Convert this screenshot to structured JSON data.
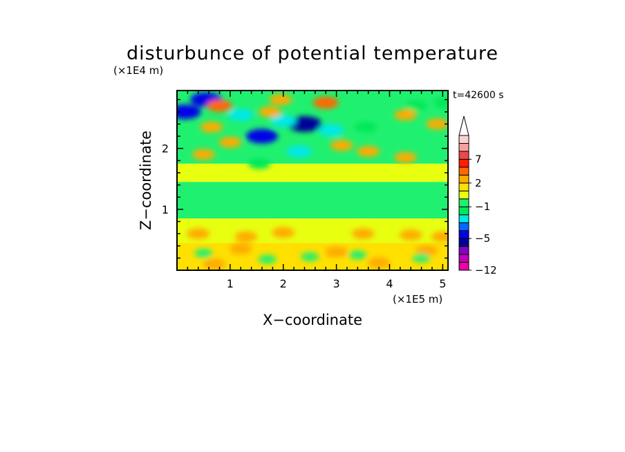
{
  "chart_data": {
    "type": "heatmap",
    "title": "disturbunce of potential temperature",
    "time_label": "t=42600 s",
    "xlabel": "X−coordinate",
    "ylabel": "Z−coordinate",
    "x_unit": "(×1E5 m)",
    "y_unit": "(×1E4 m)",
    "xlim": [
      0,
      5.1
    ],
    "ylim": [
      0,
      2.95
    ],
    "x_ticks": [
      1,
      2,
      3,
      4,
      5
    ],
    "y_ticks": [
      1,
      2
    ],
    "colorbar": {
      "levels": [
        -12,
        -10,
        -8,
        -6,
        -5,
        -4,
        -3,
        -2,
        -1,
        0,
        1,
        2,
        3,
        5,
        7,
        9,
        11,
        13
      ],
      "labels": [
        {
          "value": -12,
          "text": "−12"
        },
        {
          "value": -5,
          "text": "−5"
        },
        {
          "value": -1,
          "text": "−1"
        },
        {
          "value": 2,
          "text": "2"
        },
        {
          "value": 7,
          "text": "7"
        }
      ],
      "colors": [
        "#e800a8",
        "#c000b8",
        "#8800c0",
        "#000098",
        "#0000e8",
        "#0068ff",
        "#00e8e8",
        "#00e858",
        "#20f070",
        "#e8ff10",
        "#ffe000",
        "#ffaa00",
        "#ff6800",
        "#ff1c00",
        "#ee4848",
        "#f6a0a0",
        "#ffd0d0"
      ],
      "extend_max": true
    },
    "fields": [
      {
        "x": [
          0,
          5.1
        ],
        "y": [
          0,
          0.45
        ],
        "value": 1.5
      },
      {
        "x": [
          0,
          5.1
        ],
        "y": [
          0.45,
          0.85
        ],
        "value": 0.5
      },
      {
        "x": [
          0,
          5.1
        ],
        "y": [
          0.85,
          1.45
        ],
        "value": -0.3
      },
      {
        "x": [
          0,
          5.1
        ],
        "y": [
          1.45,
          1.75
        ],
        "value": 0.5
      },
      {
        "x": [
          0,
          5.1
        ],
        "y": [
          1.75,
          2.95
        ],
        "value": -0.2
      }
    ],
    "features": [
      {
        "x": 0.15,
        "y": 2.6,
        "value": -5
      },
      {
        "x": 0.55,
        "y": 2.8,
        "value": -5
      },
      {
        "x": 1.2,
        "y": 2.55,
        "value": -3
      },
      {
        "x": 1.6,
        "y": 2.2,
        "value": -5
      },
      {
        "x": 2.4,
        "y": 2.4,
        "value": -6
      },
      {
        "x": 2.0,
        "y": 2.45,
        "value": -3
      },
      {
        "x": 2.9,
        "y": 2.3,
        "value": -3
      },
      {
        "x": 3.55,
        "y": 2.35,
        "value": -2
      },
      {
        "x": 4.5,
        "y": 2.7,
        "value": -2
      },
      {
        "x": 5.05,
        "y": 2.75,
        "value": -2
      },
      {
        "x": 2.3,
        "y": 1.95,
        "value": -3
      },
      {
        "x": 1.55,
        "y": 1.75,
        "value": -2
      },
      {
        "x": 0.8,
        "y": 2.7,
        "value": 3
      },
      {
        "x": 1.95,
        "y": 2.8,
        "value": 2
      },
      {
        "x": 2.8,
        "y": 2.75,
        "value": 3
      },
      {
        "x": 1.75,
        "y": 2.6,
        "value": 2
      },
      {
        "x": 0.65,
        "y": 2.35,
        "value": 2
      },
      {
        "x": 1.0,
        "y": 2.1,
        "value": 2
      },
      {
        "x": 0.5,
        "y": 1.9,
        "value": 2
      },
      {
        "x": 3.1,
        "y": 2.05,
        "value": 2
      },
      {
        "x": 3.6,
        "y": 1.95,
        "value": 2
      },
      {
        "x": 4.3,
        "y": 2.55,
        "value": 2
      },
      {
        "x": 4.9,
        "y": 2.4,
        "value": 2
      },
      {
        "x": 4.3,
        "y": 1.85,
        "value": 2
      },
      {
        "x": 0.4,
        "y": 0.6,
        "value": 2
      },
      {
        "x": 1.3,
        "y": 0.55,
        "value": 2
      },
      {
        "x": 2.0,
        "y": 0.62,
        "value": 2
      },
      {
        "x": 3.5,
        "y": 0.6,
        "value": 2
      },
      {
        "x": 4.4,
        "y": 0.58,
        "value": 2
      },
      {
        "x": 5.0,
        "y": 0.55,
        "value": 2
      },
      {
        "x": 1.2,
        "y": 0.35,
        "value": 2
      },
      {
        "x": 3.0,
        "y": 0.3,
        "value": 2
      },
      {
        "x": 4.7,
        "y": 0.32,
        "value": 2
      },
      {
        "x": 0.7,
        "y": 0.1,
        "value": 2
      },
      {
        "x": 3.8,
        "y": 0.12,
        "value": 2
      },
      {
        "x": 0.5,
        "y": 0.28,
        "value": -0.5
      },
      {
        "x": 1.7,
        "y": 0.18,
        "value": -0.5
      },
      {
        "x": 2.5,
        "y": 0.22,
        "value": -0.5
      },
      {
        "x": 3.4,
        "y": 0.25,
        "value": -0.5
      },
      {
        "x": 4.6,
        "y": 0.2,
        "value": -0.5
      }
    ]
  }
}
